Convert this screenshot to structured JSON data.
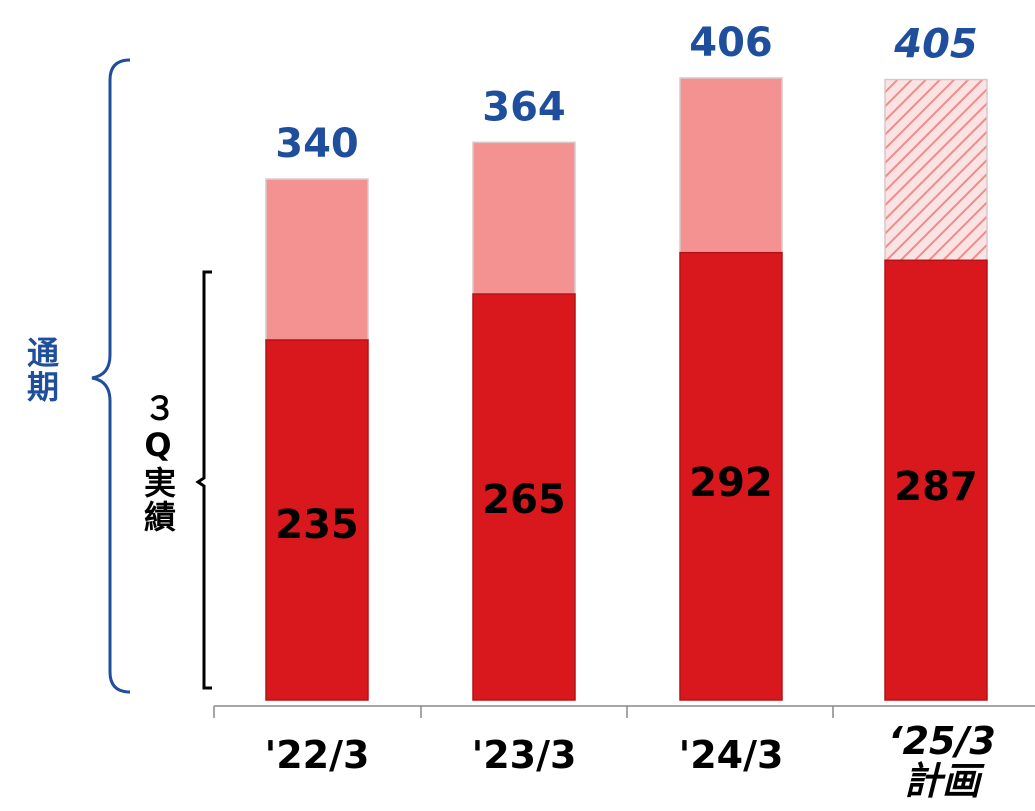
{
  "colors": {
    "actual": "#d9181e",
    "remainder": "#f49191",
    "total_label": "#1f4e9c",
    "inner_label": "#000000",
    "bracket_outer": "#1f4e9c",
    "bracket_inner": "#000000",
    "axis": "#888888"
  },
  "brackets": {
    "full_year": "通期",
    "q3_actual": "３Q実績"
  },
  "chart_data": {
    "type": "bar",
    "stacked": true,
    "categories": [
      "'22/3",
      "'23/3",
      "'24/3",
      "‘25/3\n計画"
    ],
    "total_labels": [
      "340",
      "364",
      "406",
      "405"
    ],
    "inner_labels": [
      "235",
      "265",
      "292",
      "287"
    ],
    "series": [
      {
        "values": [
          235,
          265,
          292,
          287
        ]
      },
      {
        "values": [
          105,
          99,
          114,
          118
        ]
      }
    ],
    "totals": [
      340,
      364,
      406,
      405
    ],
    "plan_index": 3,
    "ylim": [
      0,
      406
    ],
    "grid": false,
    "legend": "none"
  }
}
